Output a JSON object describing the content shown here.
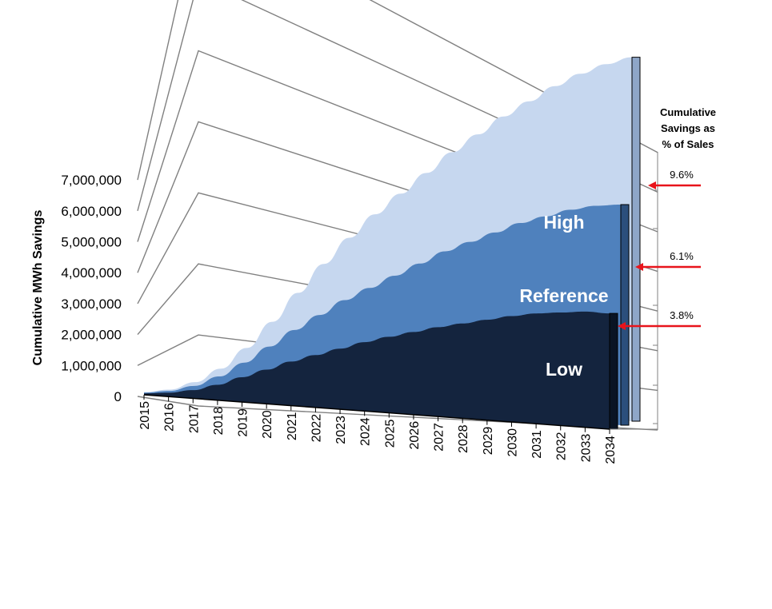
{
  "chart_data": {
    "type": "area",
    "title": "",
    "xlabel": "",
    "ylabel": "Cumulative MWh Savings",
    "ylim": [
      0,
      7000000
    ],
    "yticks": [
      0,
      1000000,
      2000000,
      3000000,
      4000000,
      5000000,
      6000000,
      7000000
    ],
    "ytick_labels": [
      "0",
      "1,000,000",
      "2,000,000",
      "3,000,000",
      "4,000,000",
      "5,000,000",
      "6,000,000",
      "7,000,000"
    ],
    "x": [
      "2015",
      "2016",
      "2017",
      "2018",
      "2019",
      "2020",
      "2021",
      "2022",
      "2023",
      "2024",
      "2025",
      "2026",
      "2027",
      "2028",
      "2029",
      "2030",
      "2031",
      "2032",
      "2033",
      "2034"
    ],
    "grid": true,
    "series": [
      {
        "name": "High",
        "color": "#c6d7ef",
        "values": [
          50000,
          120000,
          280000,
          550000,
          950000,
          1450000,
          2000000,
          2550000,
          3050000,
          3500000,
          3900000,
          4300000,
          4700000,
          5050000,
          5400000,
          5700000,
          6000000,
          6250000,
          6450000,
          6600000
        ]
      },
      {
        "name": "Reference",
        "color": "#4f81bd",
        "values": [
          40000,
          100000,
          220000,
          420000,
          700000,
          1020000,
          1350000,
          1650000,
          1950000,
          2200000,
          2450000,
          2700000,
          2950000,
          3150000,
          3350000,
          3550000,
          3700000,
          3850000,
          3950000,
          4000000
        ]
      },
      {
        "name": "Low",
        "color": "#14243e",
        "values": [
          25000,
          70000,
          150000,
          280000,
          450000,
          620000,
          800000,
          950000,
          1100000,
          1250000,
          1380000,
          1500000,
          1620000,
          1720000,
          1820000,
          1920000,
          2000000,
          2050000,
          2100000,
          2100000
        ]
      }
    ],
    "secondary_axis_title": [
      "Cumulative",
      "Savings as",
      "% of Sales"
    ],
    "annotations": [
      {
        "series": "High",
        "label": "9.6%"
      },
      {
        "series": "Reference",
        "label": "6.1%"
      },
      {
        "series": "Low",
        "label": "3.8%"
      }
    ],
    "arrow_color": "#e8141b"
  }
}
